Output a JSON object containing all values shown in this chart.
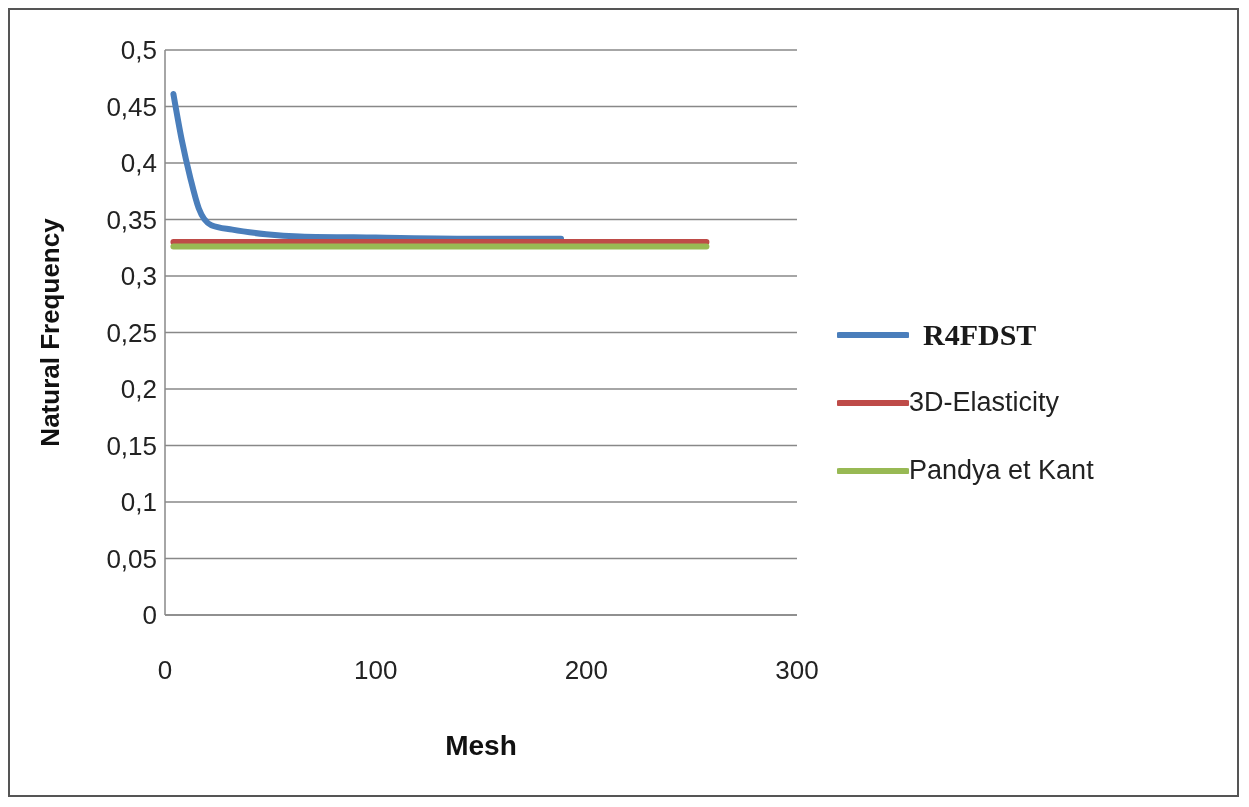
{
  "chart_data": {
    "type": "line",
    "xlabel": "Mesh",
    "ylabel": "Natural Frequency",
    "xlim": [
      0,
      300
    ],
    "xticks": [
      0,
      100,
      200,
      300
    ],
    "ylim": [
      0,
      0.5
    ],
    "yticks": [
      {
        "value": 0,
        "label": "0"
      },
      {
        "value": 0.05,
        "label": "0,05"
      },
      {
        "value": 0.1,
        "label": "0,1"
      },
      {
        "value": 0.15,
        "label": "0,15"
      },
      {
        "value": 0.2,
        "label": "0,2"
      },
      {
        "value": 0.25,
        "label": "0,25"
      },
      {
        "value": 0.3,
        "label": "0,3"
      },
      {
        "value": 0.35,
        "label": "0,35"
      },
      {
        "value": 0.4,
        "label": "0,4"
      },
      {
        "value": 0.45,
        "label": "0,45"
      },
      {
        "value": 0.5,
        "label": "0,5"
      }
    ],
    "grid": "y",
    "legend": "right",
    "marker": "none",
    "line_style": "solid",
    "series": [
      {
        "name": "R4FDST",
        "color": "#4a7ebb",
        "x": [
          4,
          8,
          12,
          16,
          22,
          32,
          48,
          64,
          100,
          150,
          188
        ],
        "values": [
          0.461,
          0.42,
          0.387,
          0.36,
          0.345,
          0.341,
          0.337,
          0.335,
          0.334,
          0.333,
          0.333
        ]
      },
      {
        "name": "3D-Elasticity",
        "color": "#be4b48",
        "x": [
          4,
          257
        ],
        "values": [
          0.33,
          0.33
        ]
      },
      {
        "name": "Pandya et Kant",
        "color": "#98b954",
        "x": [
          4,
          257
        ],
        "values": [
          0.326,
          0.326
        ]
      }
    ]
  }
}
